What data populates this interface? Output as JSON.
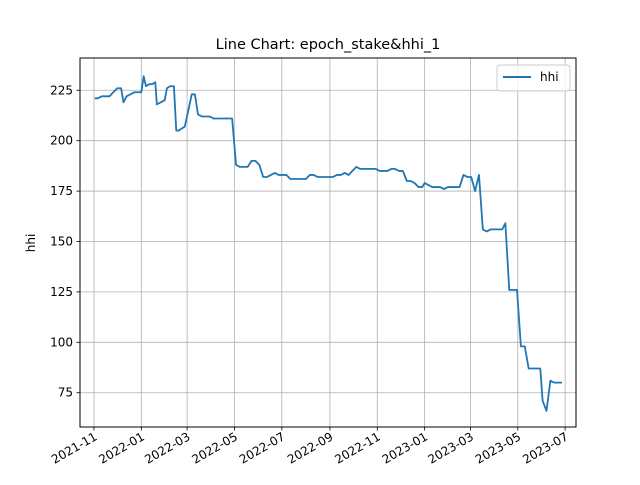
{
  "chart_data": {
    "type": "line",
    "title": "Line Chart: epoch_stake&hhi_1",
    "xlabel": "",
    "ylabel": "hhi",
    "grid": true,
    "legend_position": "top-right",
    "x_ticks": [
      "2021-11",
      "2022-01",
      "2022-03",
      "2022-05",
      "2022-07",
      "2022-09",
      "2022-11",
      "2023-01",
      "2023-03",
      "2023-05",
      "2023-07"
    ],
    "y_ticks": [
      75,
      100,
      125,
      150,
      175,
      200,
      225
    ],
    "ylim": [
      58,
      241
    ],
    "xlim": [
      "2021-10-14",
      "2023-07-15"
    ],
    "series": [
      {
        "name": "hhi",
        "color": "#1f77b4",
        "points": [
          [
            "2021-11-02",
            221
          ],
          [
            "2021-11-06",
            221
          ],
          [
            "2021-11-11",
            222
          ],
          [
            "2021-11-16",
            222
          ],
          [
            "2021-11-21",
            222
          ],
          [
            "2021-11-26",
            224
          ],
          [
            "2021-12-01",
            226
          ],
          [
            "2021-12-06",
            226
          ],
          [
            "2021-12-09",
            219
          ],
          [
            "2021-12-13",
            222
          ],
          [
            "2021-12-18",
            223
          ],
          [
            "2021-12-23",
            224
          ],
          [
            "2021-12-27",
            224
          ],
          [
            "2022-01-01",
            224
          ],
          [
            "2022-01-04",
            232
          ],
          [
            "2022-01-07",
            227
          ],
          [
            "2022-01-11",
            228
          ],
          [
            "2022-01-15",
            228
          ],
          [
            "2022-01-19",
            229
          ],
          [
            "2022-01-21",
            218
          ],
          [
            "2022-01-26",
            219
          ],
          [
            "2022-01-31",
            220
          ],
          [
            "2022-02-03",
            226
          ],
          [
            "2022-02-07",
            227
          ],
          [
            "2022-02-12",
            227
          ],
          [
            "2022-02-15",
            205
          ],
          [
            "2022-02-18",
            205
          ],
          [
            "2022-02-22",
            206
          ],
          [
            "2022-02-26",
            207
          ],
          [
            "2022-03-02",
            214
          ],
          [
            "2022-03-07",
            223
          ],
          [
            "2022-03-11",
            223
          ],
          [
            "2022-03-15",
            213
          ],
          [
            "2022-03-20",
            212
          ],
          [
            "2022-03-25",
            212
          ],
          [
            "2022-03-30",
            212
          ],
          [
            "2022-04-04",
            211
          ],
          [
            "2022-04-09",
            211
          ],
          [
            "2022-04-14",
            211
          ],
          [
            "2022-04-19",
            211
          ],
          [
            "2022-04-24",
            211
          ],
          [
            "2022-04-28",
            211
          ],
          [
            "2022-05-03",
            188
          ],
          [
            "2022-05-08",
            187
          ],
          [
            "2022-05-13",
            187
          ],
          [
            "2022-05-18",
            187
          ],
          [
            "2022-05-23",
            190
          ],
          [
            "2022-05-28",
            190
          ],
          [
            "2022-06-02",
            188
          ],
          [
            "2022-06-07",
            182
          ],
          [
            "2022-06-12",
            182
          ],
          [
            "2022-06-17",
            183
          ],
          [
            "2022-06-22",
            184
          ],
          [
            "2022-06-27",
            183
          ],
          [
            "2022-07-02",
            183
          ],
          [
            "2022-07-07",
            183
          ],
          [
            "2022-07-12",
            181
          ],
          [
            "2022-07-17",
            181
          ],
          [
            "2022-07-22",
            181
          ],
          [
            "2022-07-27",
            181
          ],
          [
            "2022-08-01",
            181
          ],
          [
            "2022-08-06",
            183
          ],
          [
            "2022-08-11",
            183
          ],
          [
            "2022-08-16",
            182
          ],
          [
            "2022-08-21",
            182
          ],
          [
            "2022-08-26",
            182
          ],
          [
            "2022-08-31",
            182
          ],
          [
            "2022-09-05",
            182
          ],
          [
            "2022-09-10",
            183
          ],
          [
            "2022-09-15",
            183
          ],
          [
            "2022-09-20",
            184
          ],
          [
            "2022-09-25",
            183
          ],
          [
            "2022-09-30",
            185
          ],
          [
            "2022-10-05",
            187
          ],
          [
            "2022-10-10",
            186
          ],
          [
            "2022-10-15",
            186
          ],
          [
            "2022-10-20",
            186
          ],
          [
            "2022-10-25",
            186
          ],
          [
            "2022-10-30",
            186
          ],
          [
            "2022-11-04",
            185
          ],
          [
            "2022-11-09",
            185
          ],
          [
            "2022-11-14",
            185
          ],
          [
            "2022-11-19",
            186
          ],
          [
            "2022-11-24",
            186
          ],
          [
            "2022-11-29",
            185
          ],
          [
            "2022-12-04",
            185
          ],
          [
            "2022-12-09",
            180
          ],
          [
            "2022-12-14",
            180
          ],
          [
            "2022-12-19",
            179
          ],
          [
            "2022-12-24",
            177
          ],
          [
            "2022-12-29",
            177
          ],
          [
            "2023-01-01",
            179
          ],
          [
            "2023-01-06",
            178
          ],
          [
            "2023-01-11",
            177
          ],
          [
            "2023-01-16",
            177
          ],
          [
            "2023-01-21",
            177
          ],
          [
            "2023-01-26",
            176
          ],
          [
            "2023-01-31",
            177
          ],
          [
            "2023-02-05",
            177
          ],
          [
            "2023-02-10",
            177
          ],
          [
            "2023-02-15",
            177
          ],
          [
            "2023-02-20",
            183
          ],
          [
            "2023-02-25",
            182
          ],
          [
            "2023-03-02",
            182
          ],
          [
            "2023-03-07",
            175
          ],
          [
            "2023-03-12",
            183
          ],
          [
            "2023-03-17",
            156
          ],
          [
            "2023-03-22",
            155
          ],
          [
            "2023-03-27",
            156
          ],
          [
            "2023-04-01",
            156
          ],
          [
            "2023-04-06",
            156
          ],
          [
            "2023-04-11",
            156
          ],
          [
            "2023-04-15",
            159
          ],
          [
            "2023-04-20",
            126
          ],
          [
            "2023-04-25",
            126
          ],
          [
            "2023-04-30",
            126
          ],
          [
            "2023-05-05",
            98
          ],
          [
            "2023-05-10",
            98
          ],
          [
            "2023-05-15",
            87
          ],
          [
            "2023-05-20",
            87
          ],
          [
            "2023-05-25",
            87
          ],
          [
            "2023-05-30",
            87
          ],
          [
            "2023-06-02",
            71
          ],
          [
            "2023-06-07",
            66
          ],
          [
            "2023-06-12",
            81
          ],
          [
            "2023-06-17",
            80
          ],
          [
            "2023-06-22",
            80
          ],
          [
            "2023-06-27",
            80
          ]
        ]
      }
    ]
  }
}
